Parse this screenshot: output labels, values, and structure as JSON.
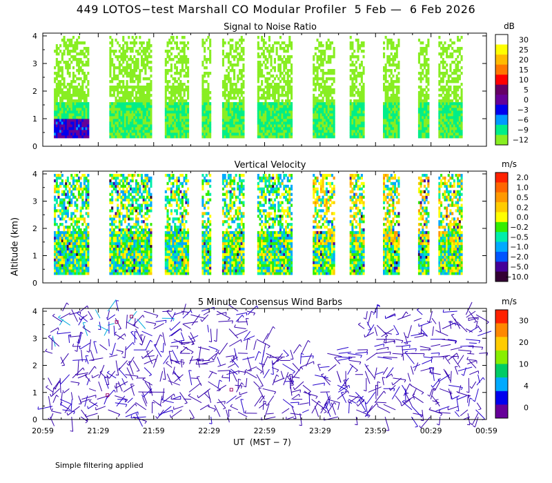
{
  "title": "449 LOTOS−test Marshall CO Modular Profiler  5 Feb —  6 Feb 2026",
  "ylabel": "Altitude (km)",
  "xlabel": "UT  (MST − 7)",
  "footnote": "Simple filtering applied",
  "colors": {
    "frame": "#000000",
    "plot_bg": "#ffffff"
  },
  "chart_data": [
    {
      "type": "heatmap",
      "title": "Signal to Noise Ratio",
      "unit": "dB",
      "x_ticks": [
        "20:59",
        "21:29",
        "21:59",
        "22:29",
        "22:59",
        "23:29",
        "23:59",
        "00:29",
        "00:59"
      ],
      "y_ticks": [
        "0",
        "1",
        "2",
        "3",
        "4"
      ],
      "ylim": [
        0,
        4
      ],
      "colorbar": {
        "labels": [
          "30",
          "25",
          "20",
          "15",
          "10",
          "5",
          "0",
          "−3",
          "−6",
          "−9",
          "−12"
        ],
        "colors": [
          "#ffffff",
          "#ffff00",
          "#ffbb00",
          "#ff7700",
          "#ff0000",
          "#660066",
          "#660099",
          "#0000ee",
          "#0099ff",
          "#00ee88",
          "#88ee22"
        ]
      },
      "description_values": {
        "time_segments": [
          [
            "21:05",
            "21:24"
          ],
          [
            "21:35",
            "21:58"
          ],
          [
            "22:05",
            "22:18"
          ],
          [
            "22:25",
            "22:30"
          ],
          [
            "22:36",
            "22:48"
          ],
          [
            "22:55",
            "23:14"
          ],
          [
            "23:25",
            "23:37"
          ],
          [
            "23:45",
            "23:53"
          ],
          [
            "00:03",
            "00:12"
          ],
          [
            "00:22",
            "00:28"
          ],
          [
            "00:33",
            "00:46"
          ]
        ]
      }
    },
    {
      "type": "heatmap",
      "title": "Vertical Velocity",
      "unit": "m/s",
      "x_ticks": [
        "20:59",
        "21:29",
        "21:59",
        "22:29",
        "22:59",
        "23:29",
        "23:59",
        "00:29",
        "00:59"
      ],
      "y_ticks": [
        "0",
        "1",
        "2",
        "3",
        "4"
      ],
      "ylim": [
        0,
        4
      ],
      "colorbar": {
        "labels": [
          "2.0",
          "1.0",
          "0.5",
          "0.2",
          "0.0",
          "−0.2",
          "−0.5",
          "−1.0",
          "−2.0",
          "−5.0",
          "−10.0"
        ],
        "colors": [
          "#ff2200",
          "#ff6600",
          "#ff9900",
          "#ffcc00",
          "#ffff00",
          "#33ee00",
          "#00eeaa",
          "#00aaff",
          "#0055ff",
          "#440099",
          "#330033"
        ]
      }
    },
    {
      "type": "scatter",
      "title": "5 Minute Consensus Wind Barbs",
      "unit": "m/s",
      "x_ticks": [
        "20:59",
        "21:29",
        "21:59",
        "22:29",
        "22:59",
        "23:29",
        "23:59",
        "00:29",
        "00:59"
      ],
      "y_ticks": [
        "0",
        "1",
        "2",
        "3",
        "4"
      ],
      "ylim": [
        0,
        4
      ],
      "colorbar": {
        "labels": [
          "30",
          "20",
          "10",
          "4",
          "0"
        ],
        "colors": [
          "#ff2200",
          "#ff8800",
          "#ffcc00",
          "#88ee00",
          "#00cc66",
          "#00aaff",
          "#0000ee",
          "#660099"
        ]
      }
    }
  ]
}
